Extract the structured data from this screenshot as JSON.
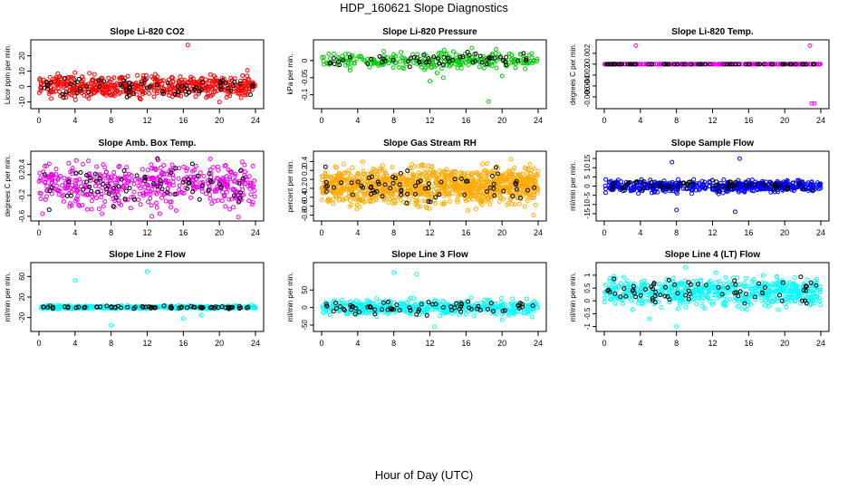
{
  "page_title": "HDP_160621  Slope Diagnostics",
  "x_axis_caption": "Hour of Day (UTC)",
  "marker_colors": {
    "overlay": "#000000"
  },
  "chart_data": [
    {
      "type": "scatter",
      "title": "Slope Li-820 CO2",
      "ylabel": "Licor ppm per min.",
      "xlim": [
        0,
        24
      ],
      "ylim": [
        -12,
        28
      ],
      "xticks": [
        0,
        4,
        8,
        12,
        16,
        20,
        24
      ],
      "yticks": [
        -10,
        0,
        10,
        20
      ],
      "color": "#ff0000",
      "center": 0,
      "spread": 3.5,
      "n": 520,
      "overlay_n": 70,
      "outliers": [
        [
          16.5,
          27
        ],
        [
          20,
          -10
        ]
      ]
    },
    {
      "type": "scatter",
      "title": "Slope Li-820 Pressure",
      "ylabel": "kPa per min.",
      "xlim": [
        0,
        24
      ],
      "ylim": [
        -0.13,
        0.05
      ],
      "xticks": [
        0,
        4,
        8,
        12,
        16,
        20,
        24
      ],
      "yticks": [
        -0.1,
        -0.05,
        0.0
      ],
      "color": "#00cc00",
      "center": 0,
      "spread": 0.012,
      "n": 260,
      "overlay_n": 60,
      "outliers": [
        [
          18.5,
          -0.12
        ],
        [
          12,
          -0.06
        ],
        [
          13.5,
          -0.05
        ],
        [
          20,
          -0.045
        ]
      ]
    },
    {
      "type": "scatter",
      "title": "Slope Li-820 Temp.",
      "ylabel": "degrees C per min.",
      "xlim": [
        0,
        24
      ],
      "ylim": [
        -0.0075,
        0.0038
      ],
      "xticks": [
        0,
        4,
        8,
        12,
        16,
        20,
        24
      ],
      "yticks": [
        -0.006,
        -0.004,
        -0.002,
        0.0,
        0.002
      ],
      "color": "#ee00ee",
      "center": 0,
      "spread": 0,
      "n": 300,
      "overlay_n": 70,
      "outliers": [
        [
          3.5,
          0.0034
        ],
        [
          22.8,
          0.0034
        ],
        [
          23,
          -0.0072
        ],
        [
          23.3,
          -0.0072
        ]
      ]
    },
    {
      "type": "scatter",
      "title": "Slope Amb. Box Temp.",
      "ylabel": "degrees C per min.",
      "xlim": [
        0,
        24
      ],
      "ylim": [
        -0.62,
        0.58
      ],
      "xticks": [
        0,
        4,
        8,
        12,
        16,
        20,
        24
      ],
      "yticks": [
        -0.6,
        -0.2,
        0.2,
        0.4
      ],
      "color": "#ee00ee",
      "center": 0,
      "spread": 0.2,
      "n": 480,
      "overlay_n": 70,
      "outliers": [
        [
          7,
          -0.55
        ],
        [
          12.5,
          -0.6
        ]
      ]
    },
    {
      "type": "scatter",
      "title": "Slope Gas Stream RH",
      "ylabel": "percent per min.",
      "xlim": [
        0,
        24
      ],
      "ylim": [
        -0.85,
        0.55
      ],
      "xticks": [
        0,
        4,
        8,
        12,
        16,
        20,
        24
      ],
      "yticks": [
        -0.8,
        -0.6,
        -0.4,
        -0.2,
        0.0,
        0.2,
        0.4
      ],
      "color": "#ffaa00",
      "center": -0.15,
      "spread": 0.2,
      "n": 1100,
      "overlay_n": 70,
      "outliers": [
        [
          23.5,
          -0.8
        ],
        [
          21,
          0.45
        ]
      ]
    },
    {
      "type": "scatter",
      "title": "Slope Sample Flow",
      "ylabel": "ml/min per min.",
      "xlim": [
        0,
        24
      ],
      "ylim": [
        -17,
        17
      ],
      "xticks": [
        0,
        4,
        8,
        12,
        16,
        20,
        24
      ],
      "yticks": [
        -15,
        -10,
        -5,
        0,
        5,
        10,
        15
      ],
      "color": "#0000ff",
      "center": 0,
      "spread": 1.5,
      "n": 520,
      "overlay_n": 70,
      "outliers": [
        [
          15,
          15
        ],
        [
          7.5,
          13
        ],
        [
          8,
          -13
        ],
        [
          14.5,
          -14
        ]
      ]
    },
    {
      "type": "scatter",
      "title": "Slope Line 2 Flow",
      "ylabel": "ml/min per min.",
      "xlim": [
        0,
        24
      ],
      "ylim": [
        -40,
        80
      ],
      "xticks": [
        0,
        4,
        8,
        12,
        16,
        20,
        24
      ],
      "yticks": [
        -20,
        20,
        60
      ],
      "color": "#00ffff",
      "center": 0,
      "spread": 1.5,
      "n": 430,
      "overlay_n": 70,
      "outliers": [
        [
          4,
          52
        ],
        [
          12,
          70
        ],
        [
          8,
          -35
        ],
        [
          16,
          -22
        ],
        [
          18,
          -15
        ]
      ]
    },
    {
      "type": "scatter",
      "title": "Slope Line 3 Flow",
      "ylabel": "ml/min per min.",
      "xlim": [
        0,
        24
      ],
      "ylim": [
        -58,
        118
      ],
      "xticks": [
        0,
        4,
        8,
        12,
        16,
        20,
        24
      ],
      "yticks": [
        -50,
        0,
        50
      ],
      "color": "#00ffff",
      "center": 0,
      "spread": 10,
      "n": 480,
      "overlay_n": 70,
      "outliers": [
        [
          12.5,
          -55
        ],
        [
          8,
          100
        ],
        [
          10.5,
          95
        ],
        [
          20,
          -35
        ]
      ]
    },
    {
      "type": "scatter",
      "title": "Slope Line 4 (LT) Flow",
      "ylabel": "ml/min per min.",
      "xlim": [
        0,
        24
      ],
      "ylim": [
        -1.05,
        1.35
      ],
      "xticks": [
        0,
        4,
        8,
        12,
        16,
        20,
        24
      ],
      "yticks": [
        -1.0,
        -0.5,
        0.0,
        0.5,
        1.0
      ],
      "color": "#00ffff",
      "center": 0.35,
      "spread": 0.25,
      "n": 600,
      "overlay_n": 70,
      "outliers": [
        [
          9,
          1.3
        ],
        [
          8,
          -1.0
        ],
        [
          5,
          -0.7
        ]
      ]
    }
  ]
}
